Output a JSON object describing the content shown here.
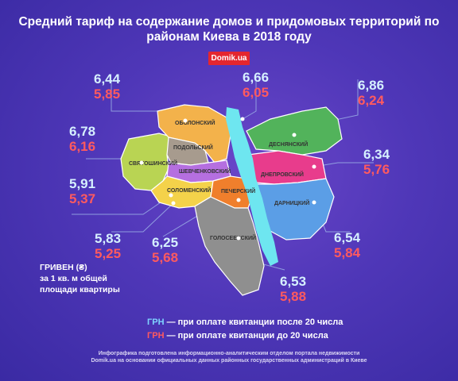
{
  "title_line1": "Средний тариф на содержание домов и придомовых территорий по",
  "title_line2": "районам Киева в 2018 году",
  "brand": "Domik.ua",
  "districts": {
    "obolonsky": {
      "name": "ОБОЛОНСКИЙ",
      "after20": "6,44",
      "before20": "5,85",
      "color": "#f3b24b"
    },
    "podolsky": {
      "name": "ПОДОЛЬСКИЙ",
      "after20": "6,66",
      "before20": "6,05",
      "color": "#a79b8e"
    },
    "svyatoshinsky": {
      "name": "СВЯТОШИНСКИЙ",
      "after20": "6,78",
      "before20": "6,16",
      "color": "#b9d453"
    },
    "shevchenkovsky": {
      "name": "ШЕВЧЕНКОВСКИЙ",
      "after20": "5,91",
      "before20": "5,37",
      "color": "#b56fe0"
    },
    "solomensky": {
      "name": "СОЛОМЕНСКИЙ",
      "after20": "5,83",
      "before20": "5,25",
      "color": "#f4d24a"
    },
    "pechersky": {
      "name": "ПЕЧЕРСКИЙ",
      "after20": "6,25",
      "before20": "5,68",
      "color": "#f07f2c"
    },
    "goloseevsky": {
      "name": "ГОЛОСЕЕВСКИЙ",
      "after20": "6,53",
      "before20": "5,88",
      "color": "#8f8f8f"
    },
    "desnyansky": {
      "name": "ДЕСНЯНСКИЙ",
      "after20": "6,86",
      "before20": "6,24",
      "color": "#52b35b"
    },
    "dneprovsky": {
      "name": "ДНЕПРОВСКИЙ",
      "after20": "6,34",
      "before20": "5,76",
      "color": "#e83c8c"
    },
    "darnitsky": {
      "name": "ДАРНИЦКИЙ",
      "after20": "6,54",
      "before20": "5,84",
      "color": "#5b9ee6"
    }
  },
  "colors": {
    "river": "#6ee6f0",
    "after20": "#d6f0ff",
    "before20": "#ff5a5f",
    "badge": "#e4262e"
  },
  "units_line1": "ГРИВЕН (₴)",
  "units_line2": "за 1 кв. м общей",
  "units_line3": "площади квартиры",
  "legend": {
    "after_key": "ГРН",
    "after_text": " — при оплате квитанции после 20 числа",
    "before_key": "ГРН",
    "before_text": " — при оплате квитанции до 20 числа"
  },
  "note_line1": "Инфографика подготовлена информационно-аналитическим отделом портала недвижимости",
  "note_line2": "Domik.ua на основании официальных данных районных государственных администраций в Киеве"
}
